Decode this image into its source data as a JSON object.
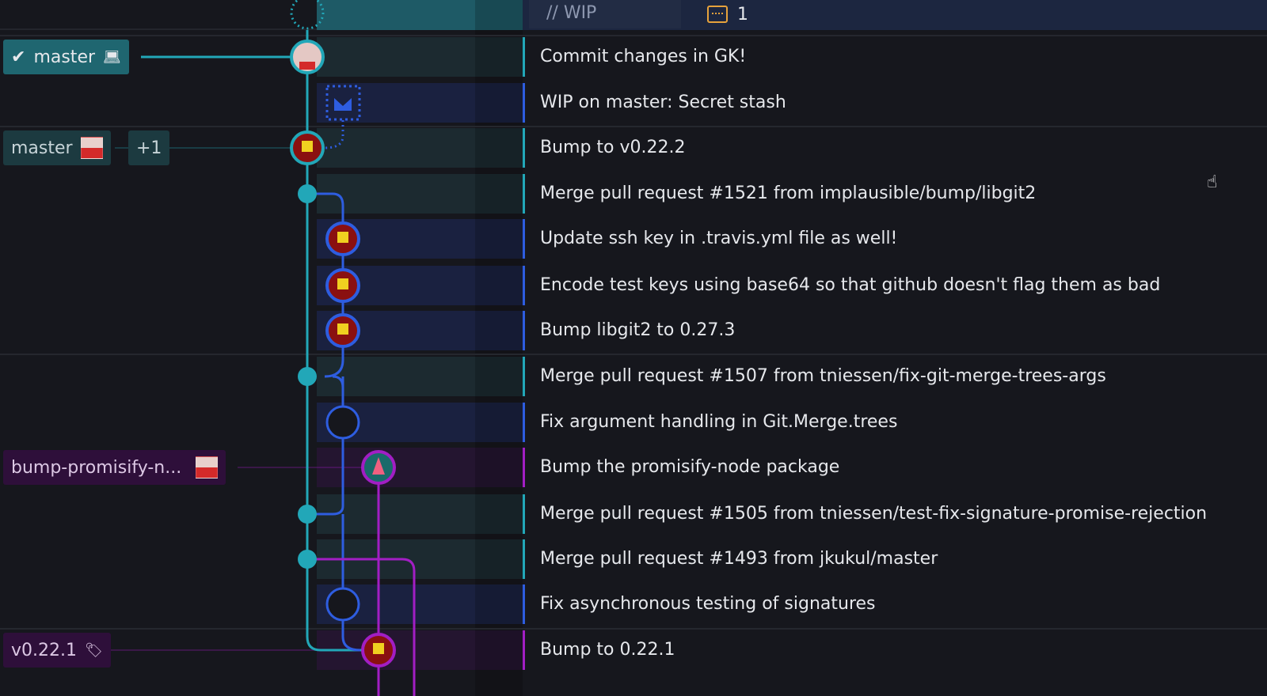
{
  "header": {
    "wip_label": "// WIP",
    "wip_file_count": "1",
    "file-icon": "file-changes-icon"
  },
  "colors": {
    "teal": "#22a7b8",
    "blue": "#2e5de0",
    "purple": "#a21ec4"
  },
  "refs": {
    "master_local": {
      "label": "master",
      "check": "✔",
      "icon": "laptop-icon"
    },
    "master_remote": {
      "label": "master",
      "more": "+1"
    },
    "bump_branch": {
      "label": "bump-promisify-n..."
    },
    "tag": {
      "label": "v0.22.1",
      "icon": "tag-icon"
    }
  },
  "commits": [
    {
      "message": "Commit changes in GK!",
      "lane": "teal"
    },
    {
      "message": "WIP on master: Secret stash",
      "lane": "blue"
    },
    {
      "message": "Bump to v0.22.2",
      "lane": "teal"
    },
    {
      "message": "Merge pull request #1521 from implausible/bump/libgit2",
      "lane": "teal"
    },
    {
      "message": "Update ssh key in .travis.yml file as well!",
      "lane": "blue"
    },
    {
      "message": "Encode test keys using base64 so that github doesn't flag them as bad",
      "lane": "blue"
    },
    {
      "message": "Bump libgit2 to 0.27.3",
      "lane": "blue"
    },
    {
      "message": "Merge pull request #1507 from tniessen/fix-git-merge-trees-args",
      "lane": "teal"
    },
    {
      "message": "Fix argument handling in Git.Merge.trees",
      "lane": "blue"
    },
    {
      "message": "Bump the promisify-node package",
      "lane": "purple"
    },
    {
      "message": "Merge pull request #1505 from tniessen/test-fix-signature-promise-rejection",
      "lane": "teal"
    },
    {
      "message": "Merge pull request #1493 from jkukul/master",
      "lane": "teal"
    },
    {
      "message": "Fix asynchronous testing of signatures",
      "lane": "blue"
    },
    {
      "message": "Bump to 0.22.1",
      "lane": "purple"
    }
  ]
}
